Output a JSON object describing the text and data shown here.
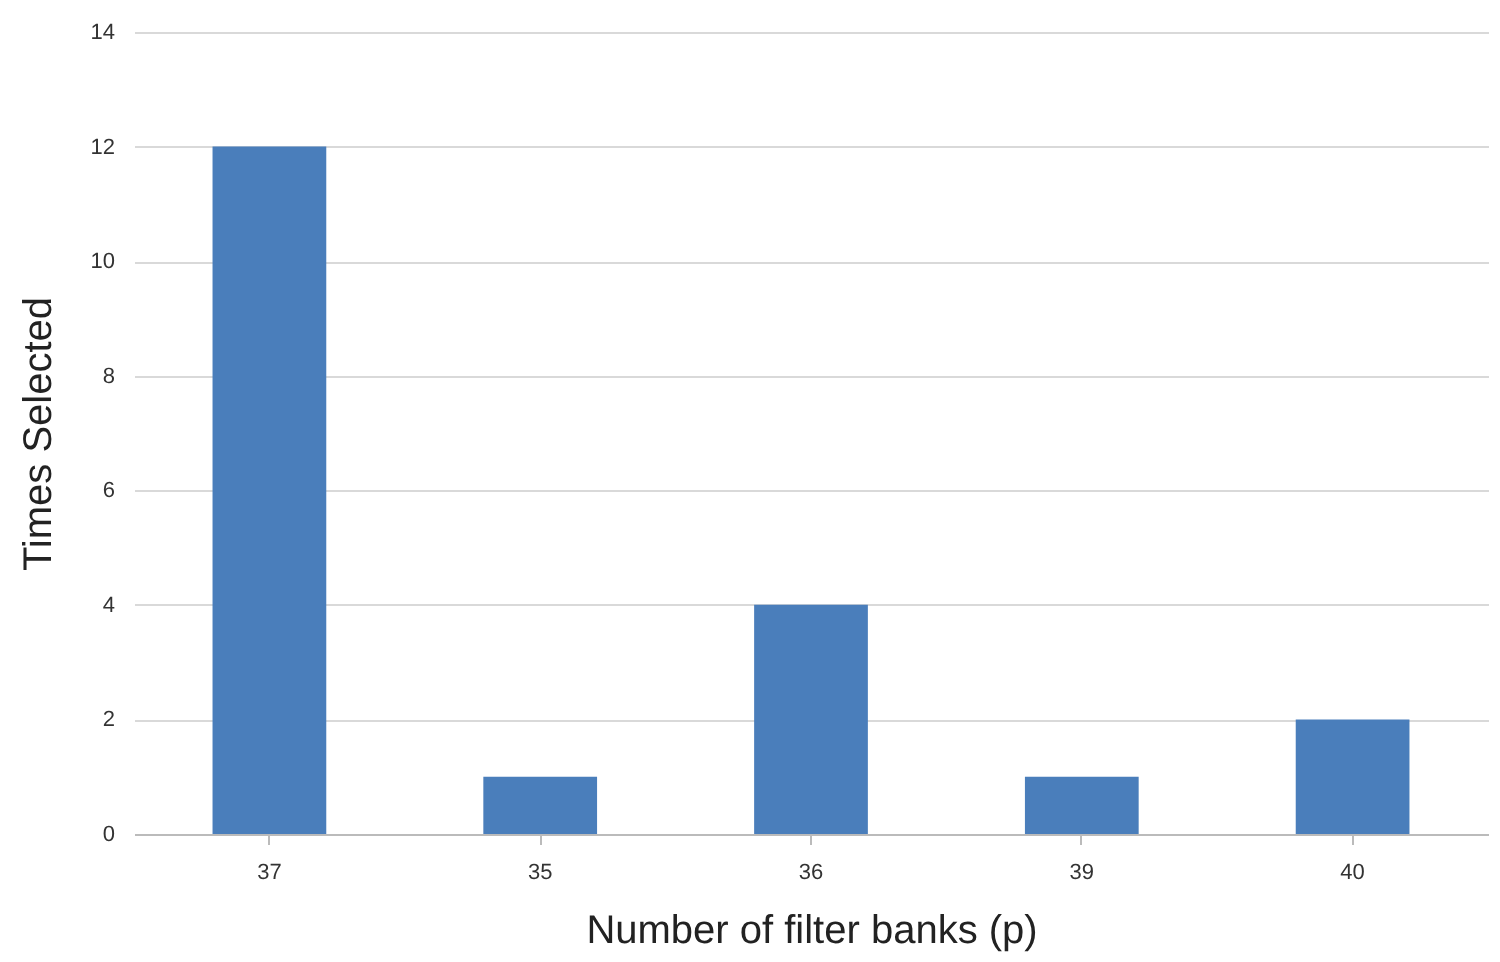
{
  "chart_data": {
    "type": "bar",
    "xlabel": "Number of filter banks (p)",
    "ylabel": "Times Selected",
    "categories": [
      "37",
      "35",
      "36",
      "39",
      "40"
    ],
    "values": [
      12,
      1,
      4,
      1,
      2
    ],
    "color": "#4a7ebb",
    "ylim": [
      0,
      14
    ],
    "yticks": [
      0,
      2,
      4,
      6,
      8,
      10,
      12,
      14
    ],
    "grid": "y"
  }
}
